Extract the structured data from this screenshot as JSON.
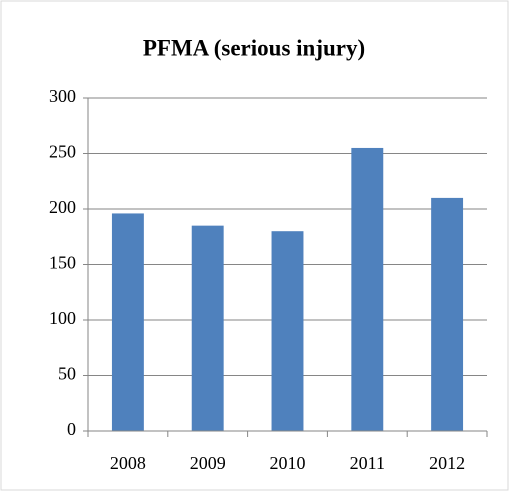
{
  "chart_data": {
    "type": "bar",
    "title": "PFMA (serious injury)",
    "categories": [
      "2008",
      "2009",
      "2010",
      "2011",
      "2012"
    ],
    "values": [
      196,
      185,
      180,
      255,
      210
    ],
    "color": "#4f81bd",
    "ylim": [
      0,
      300
    ],
    "yticks": [
      0,
      50,
      100,
      150,
      200,
      250,
      300
    ],
    "grid": true
  }
}
